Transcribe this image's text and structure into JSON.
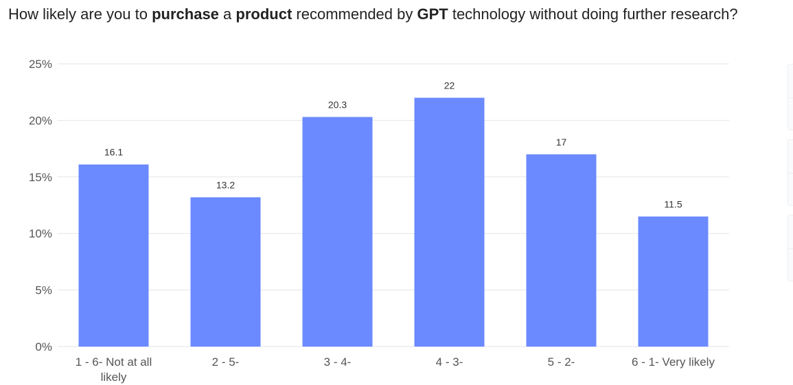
{
  "title_parts": [
    {
      "text": "How likely are you to ",
      "bold": false
    },
    {
      "text": "purchase",
      "bold": true
    },
    {
      "text": " a ",
      "bold": false
    },
    {
      "text": "product",
      "bold": true
    },
    {
      "text": " recommended by ",
      "bold": false
    },
    {
      "text": "GPT",
      "bold": true
    },
    {
      "text": " technology without doing further research?",
      "bold": false
    }
  ],
  "chart_data": {
    "type": "bar",
    "title": "How likely are you to purchase a product recommended by GPT technology without doing further research?",
    "categories": [
      "1 - 6- Not at all likely",
      "2 - 5-",
      "3 - 4-",
      "4 - 3-",
      "5 - 2-",
      "6 - 1- Very likely"
    ],
    "category_lines": [
      [
        "1 - 6- Not at all",
        "likely"
      ],
      [
        "2 - 5-"
      ],
      [
        "3 - 4-"
      ],
      [
        "4 - 3-"
      ],
      [
        "5 - 2-"
      ],
      [
        "6 - 1- Very likely"
      ]
    ],
    "values": [
      16.1,
      13.2,
      20.3,
      22,
      17,
      11.5
    ],
    "data_labels": [
      "16.1",
      "13.2",
      "20.3",
      "22",
      "17",
      "11.5"
    ],
    "ylim": [
      0,
      25
    ],
    "yticks": [
      0,
      5,
      10,
      15,
      20,
      25
    ],
    "ytick_labels": [
      "0%",
      "5%",
      "10%",
      "15%",
      "20%",
      "25%"
    ],
    "xlabel": "",
    "ylabel": "",
    "grid": true,
    "legend": "none",
    "bar_color": "#6b8aff",
    "grid_color": "#e3e5e8",
    "axis_text_color": "#555555"
  }
}
